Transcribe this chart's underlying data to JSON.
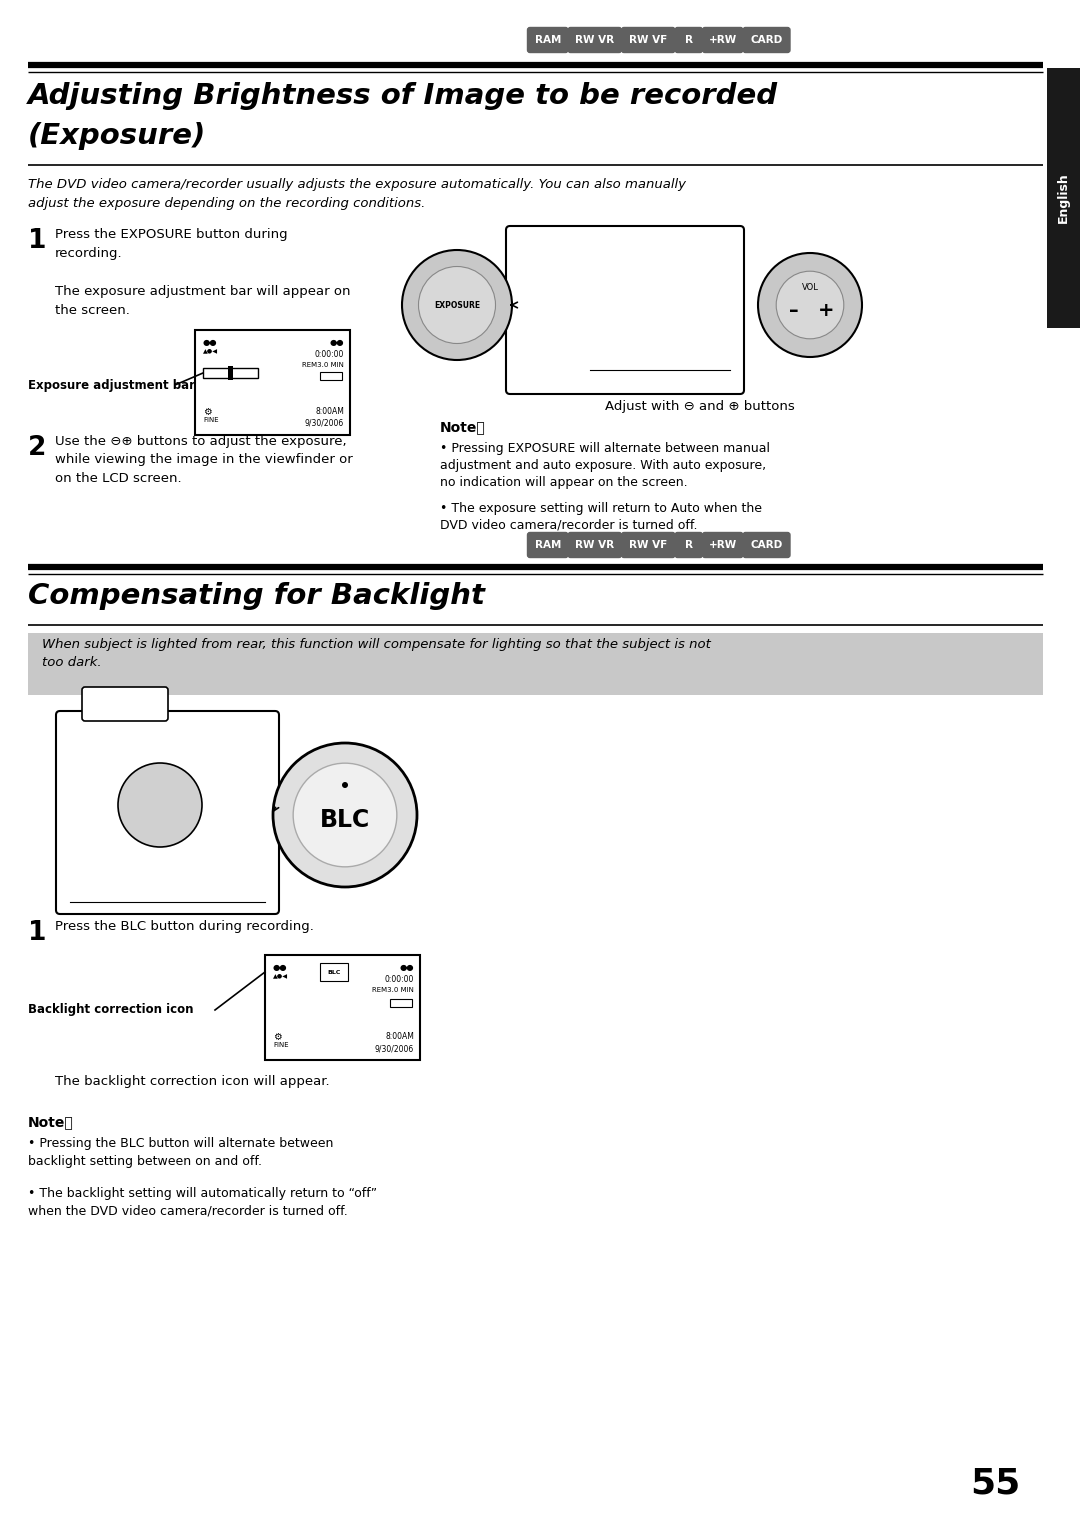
{
  "page_number": "55",
  "bg_color": "#ffffff",
  "tab_color": "#1a1a1a",
  "tab_text": "English",
  "badge_color": "#606060",
  "badge_text_color": "#ffffff",
  "badges": [
    "RAM",
    "RW VR",
    "RW VF",
    "R",
    "+RW",
    "CARD"
  ],
  "title1_line1": "Adjusting Brightness of Image to be recorded",
  "title1_line2": "(Exposure)",
  "title2": "Compensating for Backlight",
  "intro1": "The DVD video camera/recorder usually adjusts the exposure automatically. You can also manually\nadjust the exposure depending on the recording conditions.",
  "intro2": "When subject is lighted from rear, this function will compensate for lighting so that the subject is not\ntoo dark.",
  "s1_num": "1",
  "s1_text": "Press the EXPOSURE button during\nrecording.",
  "s1_detail": "The exposure adjustment bar will appear on\nthe screen.",
  "s1_label": "Exposure adjustment bar",
  "s1_caption": "Adjust with ⊖ and ⊕ buttons",
  "s2_num": "2",
  "s2_text": "Use the ⊖⊕ buttons to adjust the exposure,\nwhile viewing the image in the viewfinder or\non the LCD screen.",
  "note1_title": "Note：",
  "note1_b1": "Pressing EXPOSURE will alternate between manual\nadjustment and auto exposure. With auto exposure,\nno indication will appear on the screen.",
  "note1_b2": "The exposure setting will return to Auto when the\nDVD video camera/recorder is turned off.",
  "blc_num": "1",
  "blc_text": "Press the BLC button during recording.",
  "blc_label": "Backlight correction icon",
  "blc_caption": "The backlight correction icon will appear.",
  "note2_title": "Note：",
  "note2_b1": "Pressing the BLC button will alternate between\nbacklight setting between on and off.",
  "note2_b2": "The backlight setting will automatically return to “off”\nwhen the DVD video camera/recorder is turned off."
}
